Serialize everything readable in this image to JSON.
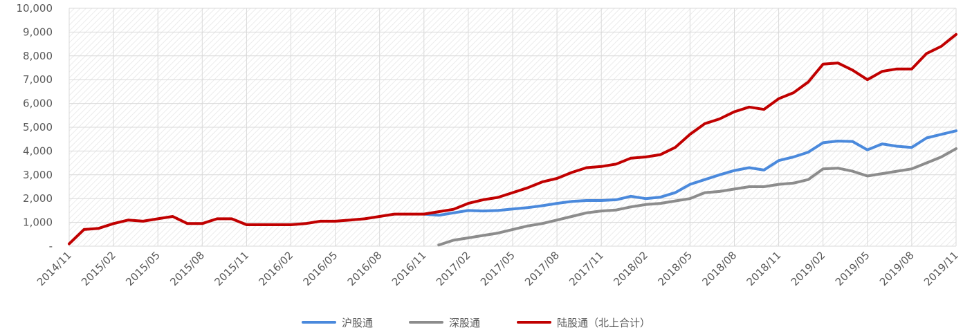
{
  "chart_data": {
    "type": "line",
    "title": "",
    "xlabel": "",
    "ylabel": "",
    "ylim": [
      0,
      10000
    ],
    "y_ticks": [
      0,
      1000,
      2000,
      3000,
      4000,
      5000,
      6000,
      7000,
      8000,
      9000,
      10000
    ],
    "y_tick_labels": [
      "-",
      "1,000",
      "2,000",
      "3,000",
      "4,000",
      "5,000",
      "6,000",
      "7,000",
      "8,000",
      "9,000",
      "10,000"
    ],
    "x_tick_labels": [
      "2014/11",
      "2015/02",
      "2015/05",
      "2015/08",
      "2015/11",
      "2016/02",
      "2016/05",
      "2016/08",
      "2016/11",
      "2017/02",
      "2017/05",
      "2017/08",
      "2017/11",
      "2018/02",
      "2018/05",
      "2018/08",
      "2018/11",
      "2019/02",
      "2019/05",
      "2019/08",
      "2019/11"
    ],
    "x_range": [
      "2014-11",
      "2019-11"
    ],
    "grid": true,
    "legend_position": "bottom",
    "series": [
      {
        "name": "沪股通",
        "color": "#4a89dc",
        "points": [
          [
            "2016-11",
            1350
          ],
          [
            "2016-12",
            1300
          ],
          [
            "2017-01",
            1400
          ],
          [
            "2017-02",
            1500
          ],
          [
            "2017-03",
            1480
          ],
          [
            "2017-04",
            1500
          ],
          [
            "2017-05",
            1560
          ],
          [
            "2017-06",
            1620
          ],
          [
            "2017-07",
            1700
          ],
          [
            "2017-08",
            1800
          ],
          [
            "2017-09",
            1880
          ],
          [
            "2017-10",
            1920
          ],
          [
            "2017-11",
            1920
          ],
          [
            "2017-12",
            1950
          ],
          [
            "2018-01",
            2100
          ],
          [
            "2018-02",
            2000
          ],
          [
            "2018-03",
            2060
          ],
          [
            "2018-04",
            2250
          ],
          [
            "2018-05",
            2600
          ],
          [
            "2018-06",
            2800
          ],
          [
            "2018-07",
            3000
          ],
          [
            "2018-08",
            3180
          ],
          [
            "2018-09",
            3300
          ],
          [
            "2018-10",
            3200
          ],
          [
            "2018-11",
            3600
          ],
          [
            "2018-12",
            3750
          ],
          [
            "2019-01",
            3950
          ],
          [
            "2019-02",
            4350
          ],
          [
            "2019-03",
            4420
          ],
          [
            "2019-04",
            4400
          ],
          [
            "2019-05",
            4050
          ],
          [
            "2019-06",
            4300
          ],
          [
            "2019-07",
            4200
          ],
          [
            "2019-08",
            4150
          ],
          [
            "2019-09",
            4550
          ],
          [
            "2019-10",
            4700
          ],
          [
            "2019-11",
            4850
          ]
        ]
      },
      {
        "name": "深股通",
        "color": "#8c8c8c",
        "points": [
          [
            "2016-12",
            50
          ],
          [
            "2017-01",
            250
          ],
          [
            "2017-02",
            350
          ],
          [
            "2017-03",
            450
          ],
          [
            "2017-04",
            550
          ],
          [
            "2017-05",
            700
          ],
          [
            "2017-06",
            850
          ],
          [
            "2017-07",
            950
          ],
          [
            "2017-08",
            1100
          ],
          [
            "2017-09",
            1250
          ],
          [
            "2017-10",
            1400
          ],
          [
            "2017-11",
            1480
          ],
          [
            "2017-12",
            1520
          ],
          [
            "2018-01",
            1650
          ],
          [
            "2018-02",
            1750
          ],
          [
            "2018-03",
            1800
          ],
          [
            "2018-04",
            1900
          ],
          [
            "2018-05",
            2000
          ],
          [
            "2018-06",
            2250
          ],
          [
            "2018-07",
            2300
          ],
          [
            "2018-08",
            2400
          ],
          [
            "2018-09",
            2500
          ],
          [
            "2018-10",
            2500
          ],
          [
            "2018-11",
            2600
          ],
          [
            "2018-12",
            2650
          ],
          [
            "2019-01",
            2800
          ],
          [
            "2019-02",
            3250
          ],
          [
            "2019-03",
            3280
          ],
          [
            "2019-04",
            3150
          ],
          [
            "2019-05",
            2950
          ],
          [
            "2019-06",
            3050
          ],
          [
            "2019-07",
            3150
          ],
          [
            "2019-08",
            3250
          ],
          [
            "2019-09",
            3500
          ],
          [
            "2019-10",
            3750
          ],
          [
            "2019-11",
            4100
          ]
        ]
      },
      {
        "name": "陆股通（北上合计）",
        "color": "#c00000",
        "points": [
          [
            "2014-11",
            100
          ],
          [
            "2014-12",
            700
          ],
          [
            "2015-01",
            750
          ],
          [
            "2015-02",
            950
          ],
          [
            "2015-03",
            1100
          ],
          [
            "2015-04",
            1050
          ],
          [
            "2015-05",
            1150
          ],
          [
            "2015-06",
            1250
          ],
          [
            "2015-07",
            950
          ],
          [
            "2015-08",
            950
          ],
          [
            "2015-09",
            1150
          ],
          [
            "2015-10",
            1150
          ],
          [
            "2015-11",
            900
          ],
          [
            "2015-12",
            900
          ],
          [
            "2016-01",
            900
          ],
          [
            "2016-02",
            900
          ],
          [
            "2016-03",
            950
          ],
          [
            "2016-04",
            1050
          ],
          [
            "2016-05",
            1050
          ],
          [
            "2016-06",
            1100
          ],
          [
            "2016-07",
            1150
          ],
          [
            "2016-08",
            1250
          ],
          [
            "2016-09",
            1350
          ],
          [
            "2016-10",
            1350
          ],
          [
            "2016-11",
            1350
          ],
          [
            "2016-12",
            1450
          ],
          [
            "2017-01",
            1550
          ],
          [
            "2017-02",
            1800
          ],
          [
            "2017-03",
            1950
          ],
          [
            "2017-04",
            2050
          ],
          [
            "2017-05",
            2250
          ],
          [
            "2017-06",
            2450
          ],
          [
            "2017-07",
            2700
          ],
          [
            "2017-08",
            2850
          ],
          [
            "2017-09",
            3100
          ],
          [
            "2017-10",
            3300
          ],
          [
            "2017-11",
            3350
          ],
          [
            "2017-12",
            3450
          ],
          [
            "2018-01",
            3700
          ],
          [
            "2018-02",
            3750
          ],
          [
            "2018-03",
            3850
          ],
          [
            "2018-04",
            4150
          ],
          [
            "2018-05",
            4700
          ],
          [
            "2018-06",
            5150
          ],
          [
            "2018-07",
            5350
          ],
          [
            "2018-08",
            5650
          ],
          [
            "2018-09",
            5850
          ],
          [
            "2018-10",
            5750
          ],
          [
            "2018-11",
            6200
          ],
          [
            "2018-12",
            6450
          ],
          [
            "2019-01",
            6900
          ],
          [
            "2019-02",
            7650
          ],
          [
            "2019-03",
            7700
          ],
          [
            "2019-04",
            7400
          ],
          [
            "2019-05",
            7000
          ],
          [
            "2019-06",
            7350
          ],
          [
            "2019-07",
            7450
          ],
          [
            "2019-08",
            7450
          ],
          [
            "2019-09",
            8100
          ],
          [
            "2019-10",
            8400
          ],
          [
            "2019-11",
            8900
          ]
        ]
      }
    ]
  }
}
